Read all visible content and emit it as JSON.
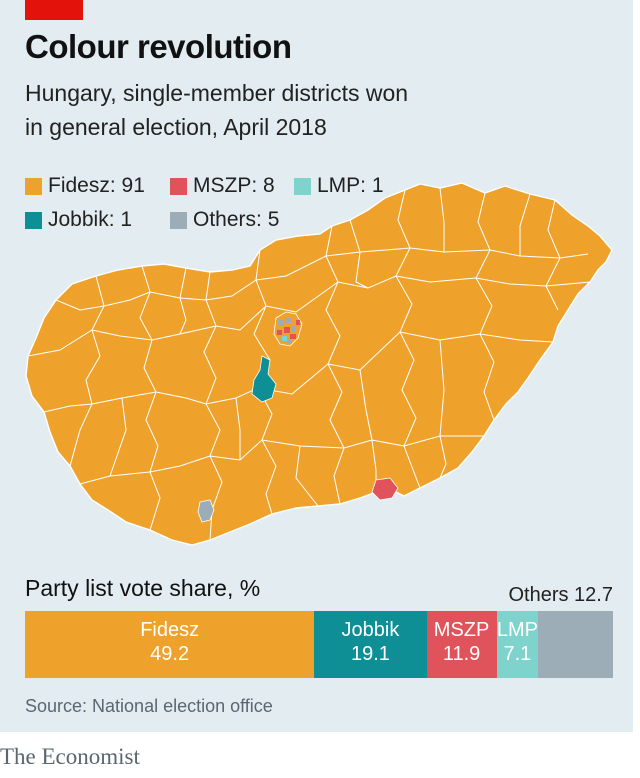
{
  "title": "Colour revolution",
  "subtitle_line1": "Hungary, single-member districts won",
  "subtitle_line2": "in general election, April 2018",
  "colors": {
    "fidesz": "#efa22b",
    "mszp": "#e0535a",
    "lmp": "#7ed3cd",
    "jobbik": "#0d8f95",
    "others": "#9dadb8",
    "background": "#e2ecf1",
    "accent": "#e3120b"
  },
  "legend": [
    {
      "label": "Fidesz: 91",
      "color": "#efa22b"
    },
    {
      "label": "MSZP: 8",
      "color": "#e0535a"
    },
    {
      "label": "LMP: 1",
      "color": "#7ed3cd"
    },
    {
      "label": "Jobbik: 1",
      "color": "#0d8f95"
    },
    {
      "label": "Others: 5",
      "color": "#9dadb8"
    }
  ],
  "chart_data": {
    "type": "bar",
    "title": "Party list vote share, %",
    "categories": [
      "Fidesz",
      "Jobbik",
      "MSZP",
      "LMP",
      "Others"
    ],
    "values": [
      49.2,
      19.1,
      11.9,
      7.1,
      12.7
    ],
    "value_labels": [
      "49.2",
      "19.1",
      "11.9",
      "7.1",
      "12.7"
    ],
    "others_label": "Others 12.7"
  },
  "source": "Source: National election office",
  "brand": "The Economist"
}
